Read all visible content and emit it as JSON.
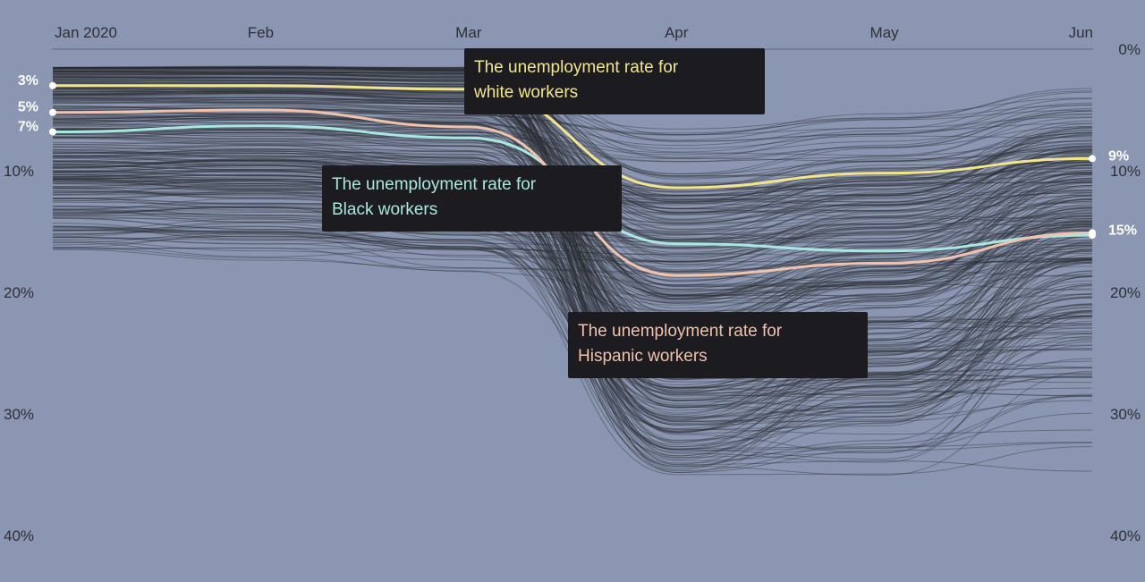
{
  "chart_data": {
    "type": "line",
    "x_ticks": [
      "Jan 2020",
      "Feb",
      "Mar",
      "Apr",
      "May",
      "Jun"
    ],
    "y_ticks": [
      "0%",
      "10%",
      "20%",
      "30%",
      "40%"
    ],
    "ylim": [
      0,
      40
    ],
    "y_inverted": true,
    "grid": false,
    "colors": {
      "background": "#8b97b2",
      "background_lines": "#2a2c33",
      "white_workers": "#f2e58e",
      "black_workers": "#a9e8e1",
      "hispanic_workers": "#f1c2ad"
    },
    "highlighted_series": [
      {
        "key": "white",
        "values": [
          3.0,
          3.0,
          3.3,
          11.4,
          10.2,
          9.0
        ],
        "start_label": "3%",
        "end_label": "9%",
        "annotation": "The unemployment rate for white workers"
      },
      {
        "key": "black",
        "values": [
          6.8,
          6.3,
          7.3,
          16.0,
          16.6,
          15.3
        ],
        "start_label": "7%",
        "end_label": "",
        "annotation": "The unemployment rate for Black workers"
      },
      {
        "key": "hispanic",
        "values": [
          5.2,
          5.0,
          6.4,
          18.6,
          17.6,
          15.1
        ],
        "start_label": "5%",
        "end_label": "15%",
        "annotation": "The unemployment rate for Hispanic workers"
      }
    ],
    "background_series_count": 330,
    "background_series_range": {
      "start": [
        1.5,
        17
      ],
      "mid_apr": [
        6,
        35
      ],
      "end_jun": [
        3,
        35
      ]
    }
  },
  "annotations": {
    "white_line1": "The unemployment rate for",
    "white_line2": "white workers",
    "black_line1": "The unemployment rate for",
    "black_line2": "Black workers",
    "hisp_line1": "The unemployment rate for",
    "hisp_line2": "Hispanic workers"
  }
}
